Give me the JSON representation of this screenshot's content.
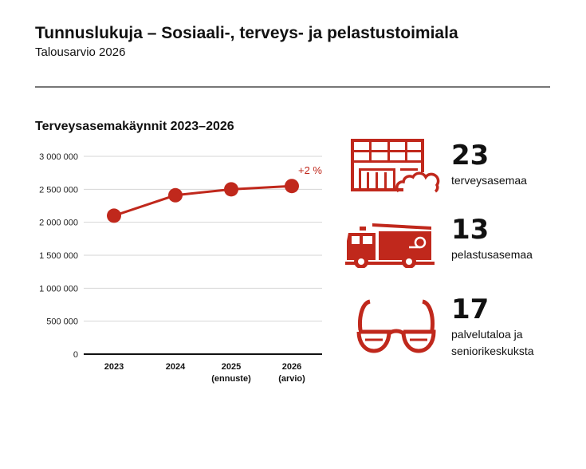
{
  "header": {
    "title": "Tunnuslukuja – Sosiaali-, terveys- ja pelastustoimiala",
    "subtitle": "Talousarvio 2026"
  },
  "chart_data": {
    "type": "line",
    "title": "Terveysasemakäynnit 2023–2026",
    "categories": [
      [
        "2023",
        ""
      ],
      [
        "2024",
        ""
      ],
      [
        "2025",
        "(ennuste)"
      ],
      [
        "2026",
        "(arvio)"
      ]
    ],
    "values": [
      2100000,
      2410000,
      2500000,
      2550000
    ],
    "ylim": [
      0,
      3000000
    ],
    "yticks": [
      0,
      500000,
      1000000,
      1500000,
      2000000,
      2500000,
      3000000
    ],
    "ytick_labels": [
      "0",
      "500 000",
      "1 000 000",
      "1 500 000",
      "2 000 000",
      "2 500 000",
      "3 000 000"
    ],
    "annotation": "+2 %",
    "grid": true,
    "color": "#c0281c"
  },
  "stats": [
    {
      "value": "23",
      "label": "terveysasemaa",
      "icon": "health-center-building-icon"
    },
    {
      "value": "13",
      "label": "pelastusasemaa",
      "icon": "fire-truck-icon"
    },
    {
      "value": "17",
      "label": "palvelutaloa ja seniorikeskuksta",
      "icon": "glasses-icon"
    }
  ]
}
